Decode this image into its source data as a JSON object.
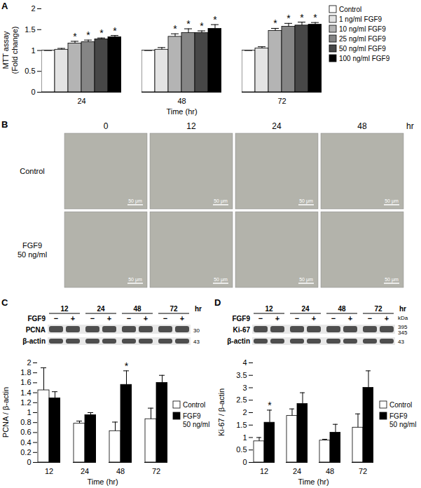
{
  "chart_data": [
    {
      "panel": "A",
      "type": "bar",
      "x_label": "Time (hr)",
      "y_label": "MTT assay\n(Fold change)",
      "categories": [
        24,
        48,
        72
      ],
      "series": [
        {
          "name": "Control",
          "color": "#ffffff",
          "values": [
            1.0,
            1.0,
            1.0
          ],
          "errors": [
            0,
            0,
            0
          ],
          "significance": [
            null,
            null,
            null
          ]
        },
        {
          "name": "1 ng/ml FGF9",
          "color": "#e3e3e3",
          "values": [
            1.02,
            1.02,
            1.05
          ],
          "errors": [
            0.03,
            0.05,
            0.04
          ],
          "significance": [
            null,
            null,
            null
          ]
        },
        {
          "name": "10 ng/ml FGF9",
          "color": "#b4b4b4",
          "values": [
            1.17,
            1.33,
            1.47
          ],
          "errors": [
            0.05,
            0.07,
            0.06
          ],
          "significance": [
            "*",
            "*",
            "*"
          ]
        },
        {
          "name": "25 ng/ml FGF9",
          "color": "#858585",
          "values": [
            1.2,
            1.42,
            1.57
          ],
          "errors": [
            0.05,
            0.1,
            0.08
          ],
          "significance": [
            "*",
            "*",
            "*"
          ]
        },
        {
          "name": "50 ng/ml FGF9",
          "color": "#474747",
          "values": [
            1.27,
            1.42,
            1.6
          ],
          "errors": [
            0.03,
            0.05,
            0.08
          ],
          "significance": [
            "*",
            "*",
            "*"
          ]
        },
        {
          "name": "100 ng/ml FGF9",
          "color": "#000000",
          "values": [
            1.32,
            1.52,
            1.62
          ],
          "errors": [
            0.04,
            0.1,
            0.05
          ],
          "significance": [
            "*",
            "*",
            "*"
          ]
        }
      ],
      "ylim": [
        0,
        2
      ],
      "yticks": [
        0,
        0.5,
        1,
        1.5,
        2
      ],
      "grid": false,
      "legend": "right"
    },
    {
      "panel": "C",
      "type": "bar",
      "x_label": "Time (hr)",
      "y_label": "PCNA / β-actin",
      "categories": [
        12,
        24,
        48,
        72
      ],
      "series": [
        {
          "name": "Control",
          "color": "#ffffff",
          "values": [
            1.45,
            0.78,
            0.63,
            0.87
          ],
          "errors": [
            0.45,
            0.05,
            0.18,
            0.22
          ],
          "significance": [
            null,
            null,
            null,
            null
          ]
        },
        {
          "name": "FGF9\n50 ng/ml",
          "color": "#000000",
          "values": [
            1.29,
            0.95,
            1.56,
            1.6
          ],
          "errors": [
            0.13,
            0.05,
            0.28,
            0.15
          ],
          "significance": [
            null,
            null,
            "*",
            null
          ]
        }
      ],
      "ylim": [
        0,
        2
      ],
      "yticks": [
        0,
        0.2,
        0.4,
        0.6,
        0.8,
        1,
        1.2,
        1.4,
        1.6,
        1.8,
        2
      ],
      "grid": false,
      "legend": "right"
    },
    {
      "panel": "D",
      "type": "bar",
      "x_label": "Time (hr)",
      "y_label": "Ki-67 / β-actin",
      "categories": [
        12,
        24,
        48,
        72
      ],
      "series": [
        {
          "name": "Control",
          "color": "#ffffff",
          "values": [
            0.85,
            1.87,
            0.88,
            1.4
          ],
          "errors": [
            0.15,
            0.28,
            0.05,
            0.55
          ],
          "significance": [
            null,
            null,
            null,
            null
          ]
        },
        {
          "name": "FGF9\n50 ng/ml",
          "color": "#000000",
          "values": [
            1.6,
            2.35,
            1.2,
            3.0
          ],
          "errors": [
            0.5,
            0.45,
            0.33,
            0.68
          ],
          "significance": [
            "*",
            null,
            null,
            null
          ]
        }
      ],
      "ylim": [
        0,
        4
      ],
      "yticks": [
        0,
        0.5,
        1,
        1.5,
        2,
        2.5,
        3,
        3.5,
        4
      ],
      "grid": false,
      "legend": "right"
    }
  ],
  "micrographs": {
    "panel": "B",
    "columns": [
      0,
      12,
      24,
      48
    ],
    "unit": "hr",
    "rows": [
      "Control",
      "FGF9\n50 ng/ml"
    ],
    "scale_bar": "50 μm"
  },
  "blots": [
    {
      "panel": "C",
      "times": [
        12,
        24,
        48,
        72
      ],
      "unit": "hr",
      "treatment": "FGF9",
      "lanes": [
        "−",
        "+"
      ],
      "bands": [
        {
          "name": "PCNA",
          "kda": [
            "30"
          ]
        },
        {
          "name": "β-actin",
          "kda": [
            "43"
          ]
        }
      ]
    },
    {
      "panel": "D",
      "times": [
        12,
        24,
        48,
        72
      ],
      "unit": "hr",
      "treatment": "FGF9",
      "lanes": [
        "−",
        "+"
      ],
      "kda_label": "kDa",
      "bands": [
        {
          "name": "Ki-67",
          "kda": [
            "395",
            "345"
          ]
        },
        {
          "name": "β-actin",
          "kda": [
            "43"
          ]
        }
      ]
    }
  ]
}
